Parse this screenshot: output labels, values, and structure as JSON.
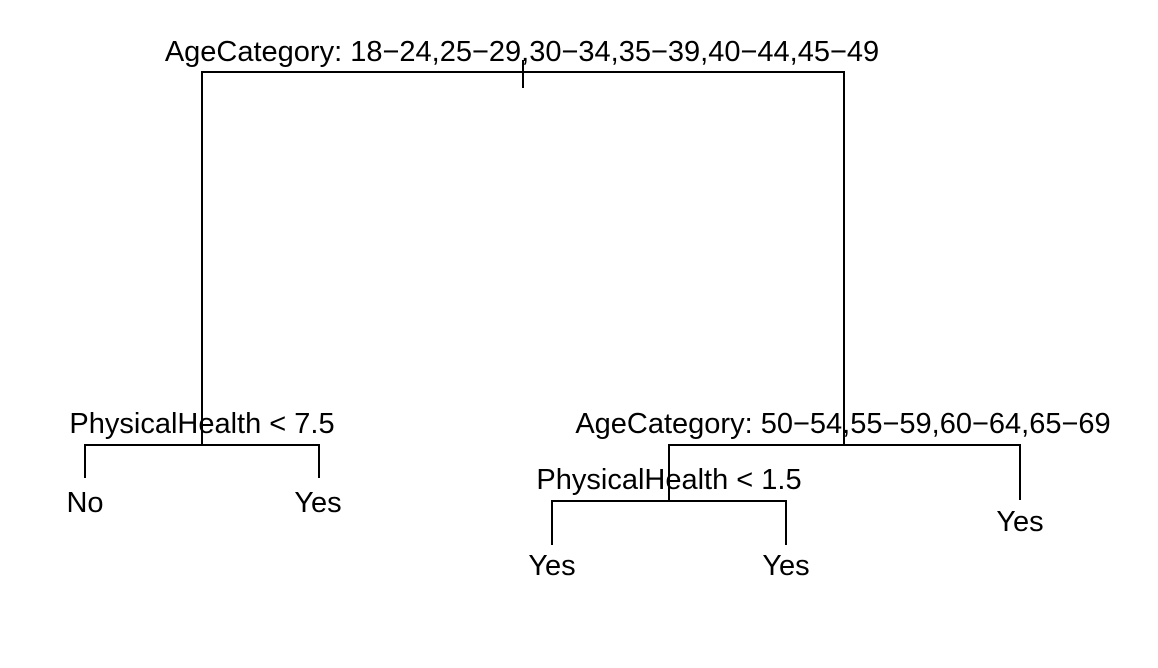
{
  "tree": {
    "root": {
      "split_label": "AgeCategory: 18−24,25−29,30−34,35−39,40−44,45−49",
      "left": {
        "split_label": "PhysicalHealth < 7.5",
        "left_leaf": "No",
        "right_leaf": "Yes"
      },
      "right": {
        "split_label": "AgeCategory: 50−54,55−59,60−64,65−69",
        "left": {
          "split_label": "PhysicalHealth < 1.5",
          "left_leaf": "Yes",
          "right_leaf": "Yes"
        },
        "right_leaf": "Yes"
      }
    }
  }
}
